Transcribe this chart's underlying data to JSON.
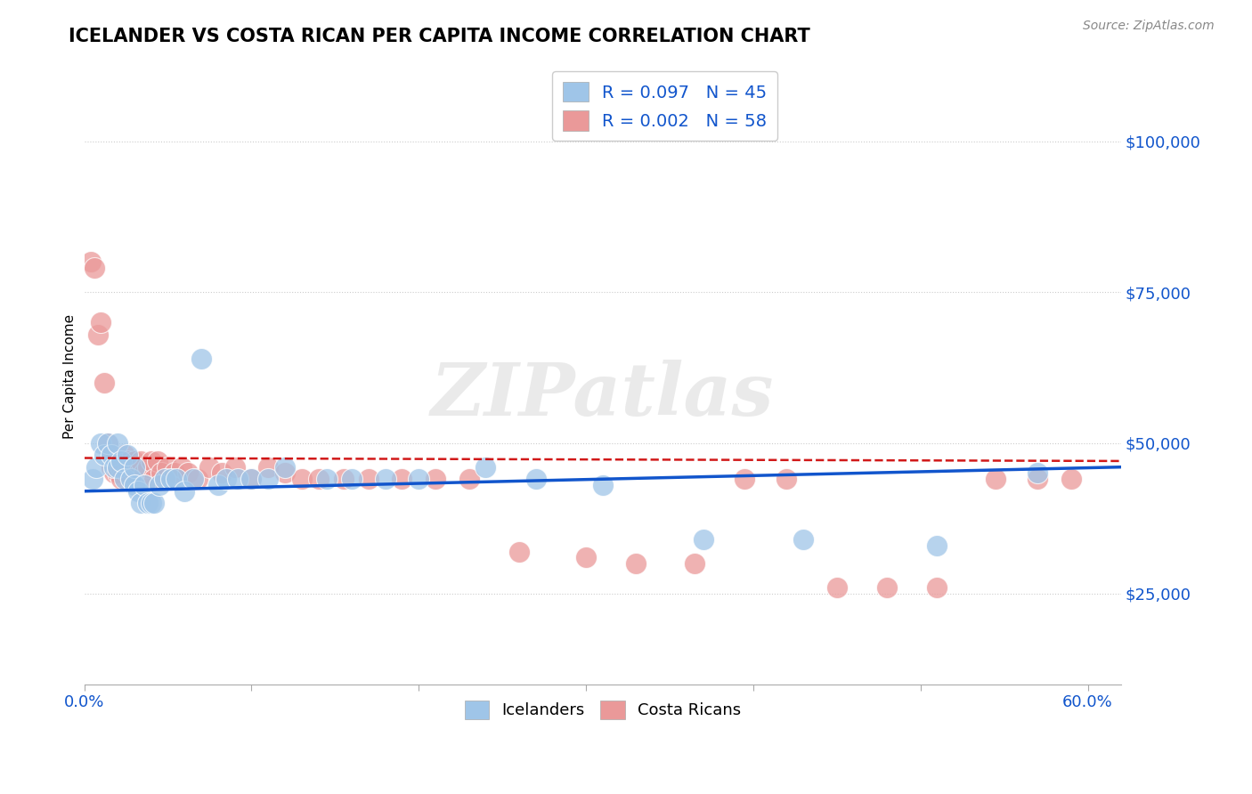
{
  "title": "ICELANDER VS COSTA RICAN PER CAPITA INCOME CORRELATION CHART",
  "source": "Source: ZipAtlas.com",
  "ylabel": "Per Capita Income",
  "yticks": [
    25000,
    50000,
    75000,
    100000
  ],
  "ytick_labels": [
    "$25,000",
    "$50,000",
    "$75,000",
    "$100,000"
  ],
  "ylim": [
    10000,
    112000
  ],
  "xlim": [
    0.0,
    0.62
  ],
  "legend_icelander": {
    "R": "0.097",
    "N": "45"
  },
  "legend_costa_rican": {
    "R": "0.002",
    "N": "58"
  },
  "color_icelander": "#9fc5e8",
  "color_costa_rican": "#ea9999",
  "color_icelander_line": "#1155cc",
  "color_costa_rican_line": "#cc0000",
  "watermark": "ZIPatlas",
  "tick_color": "#1155cc",
  "icelanders_x": [
    0.005,
    0.007,
    0.01,
    0.012,
    0.014,
    0.016,
    0.018,
    0.02,
    0.02,
    0.022,
    0.024,
    0.026,
    0.028,
    0.03,
    0.03,
    0.032,
    0.034,
    0.036,
    0.038,
    0.04,
    0.042,
    0.045,
    0.048,
    0.052,
    0.055,
    0.06,
    0.065,
    0.07,
    0.08,
    0.085,
    0.092,
    0.1,
    0.11,
    0.12,
    0.145,
    0.16,
    0.18,
    0.2,
    0.24,
    0.27,
    0.31,
    0.37,
    0.43,
    0.51,
    0.57
  ],
  "icelanders_y": [
    44000,
    46000,
    50000,
    48000,
    50000,
    48000,
    46000,
    46000,
    50000,
    47000,
    44000,
    48000,
    44000,
    46000,
    43000,
    42000,
    40000,
    43000,
    40000,
    40000,
    40000,
    43000,
    44000,
    44000,
    44000,
    42000,
    44000,
    64000,
    43000,
    44000,
    44000,
    44000,
    44000,
    46000,
    44000,
    44000,
    44000,
    44000,
    46000,
    44000,
    43000,
    34000,
    34000,
    33000,
    45000
  ],
  "costa_ricans_x": [
    0.004,
    0.006,
    0.008,
    0.01,
    0.012,
    0.014,
    0.016,
    0.016,
    0.018,
    0.018,
    0.02,
    0.02,
    0.022,
    0.022,
    0.024,
    0.026,
    0.026,
    0.028,
    0.03,
    0.03,
    0.032,
    0.034,
    0.036,
    0.038,
    0.04,
    0.042,
    0.044,
    0.046,
    0.05,
    0.054,
    0.058,
    0.062,
    0.068,
    0.075,
    0.082,
    0.09,
    0.1,
    0.11,
    0.12,
    0.13,
    0.14,
    0.155,
    0.17,
    0.19,
    0.21,
    0.23,
    0.26,
    0.3,
    0.33,
    0.365,
    0.395,
    0.42,
    0.45,
    0.48,
    0.51,
    0.545,
    0.57,
    0.59
  ],
  "costa_ricans_y": [
    80000,
    79000,
    68000,
    70000,
    60000,
    50000,
    48000,
    46000,
    47000,
    45000,
    47000,
    45000,
    46000,
    44000,
    48000,
    47000,
    45000,
    46000,
    47000,
    45000,
    46000,
    47000,
    45000,
    46000,
    47000,
    44000,
    47000,
    45000,
    46000,
    45000,
    46000,
    45000,
    44000,
    46000,
    45000,
    46000,
    44000,
    46000,
    45000,
    44000,
    44000,
    44000,
    44000,
    44000,
    44000,
    44000,
    32000,
    31000,
    30000,
    30000,
    44000,
    44000,
    26000,
    26000,
    26000,
    44000,
    44000,
    44000
  ]
}
